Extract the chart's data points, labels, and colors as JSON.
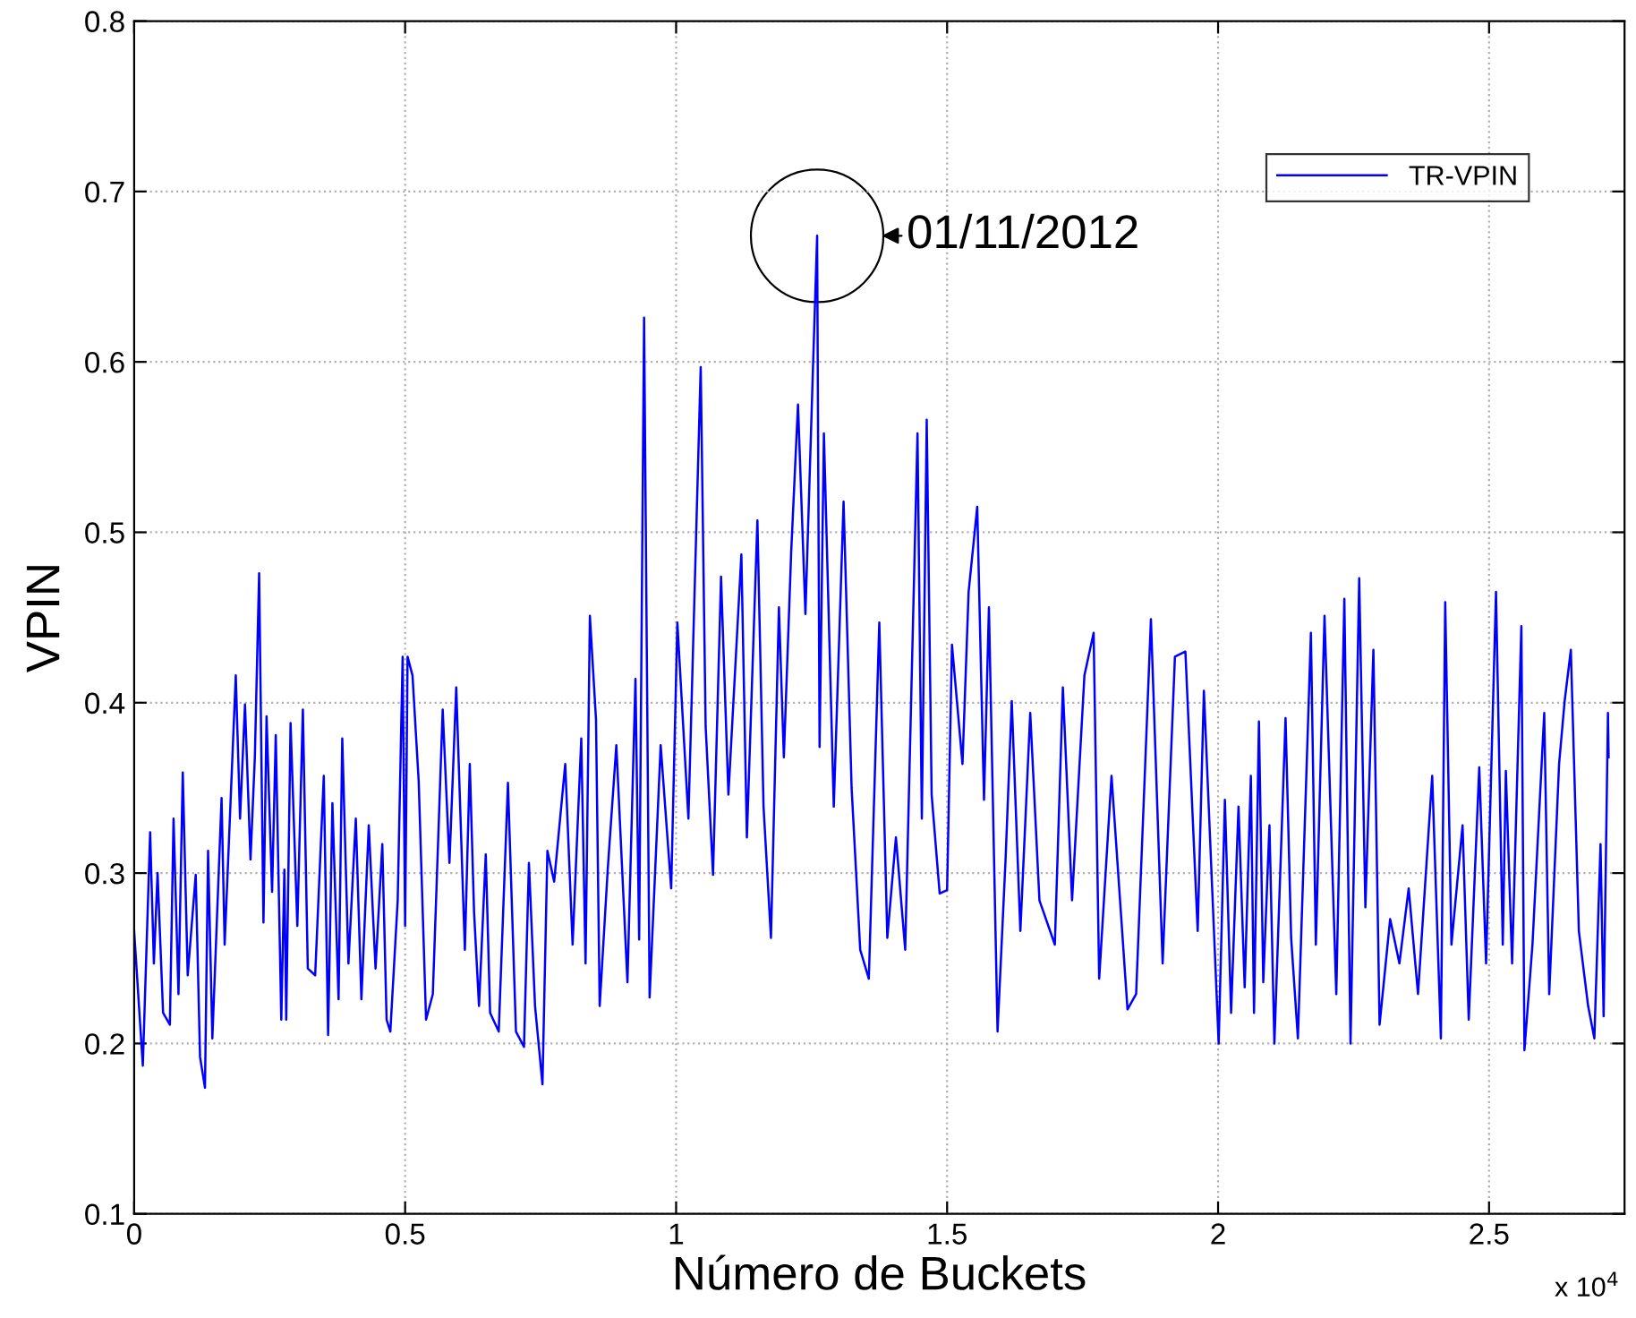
{
  "chart_data": {
    "type": "line",
    "xlabel": "Número de Buckets",
    "ylabel": "VPIN",
    "xlim": [
      0,
      2.75
    ],
    "ylim": [
      0.1,
      0.8
    ],
    "xticks": [
      0,
      0.5,
      1,
      1.5,
      2,
      2.5
    ],
    "yticks": [
      0.1,
      0.2,
      0.3,
      0.4,
      0.5,
      0.6,
      0.7,
      0.8
    ],
    "grid": true,
    "legend": "top right",
    "annotations": [
      "x 10$^{4}$",
      {
        "text": "01/11/2012",
        "x": 1.2602,
        "y": 0.674
      }
    ],
    "series": [
      {
        "name": "TR-VPIN",
        "color": "#0000ff",
        "x": [
          0,
          0.016,
          0.0295,
          0.0364,
          0.0432,
          0.0534,
          0.0659,
          0.0727,
          0.0818,
          0.0897,
          0.0988,
          0.1136,
          0.1216,
          0.1307,
          0.1364,
          0.1443,
          0.1613,
          0.167,
          0.1875,
          0.1954,
          0.2045,
          0.2147,
          0.2227,
          0.2306,
          0.2386,
          0.2443,
          0.2545,
          0.2613,
          0.2715,
          0.2772,
          0.2806,
          0.2886,
          0.3011,
          0.3113,
          0.3204,
          0.334,
          0.3499,
          0.3579,
          0.3658,
          0.3772,
          0.384,
          0.3954,
          0.409,
          0.4193,
          0.4329,
          0.4454,
          0.4579,
          0.4658,
          0.4727,
          0.4863,
          0.4954,
          0.5,
          0.5045,
          0.5136,
          0.525,
          0.5386,
          0.5511,
          0.5693,
          0.5818,
          0.5943,
          0.6102,
          0.6193,
          0.6272,
          0.6363,
          0.6488,
          0.6568,
          0.6727,
          0.6897,
          0.7045,
          0.7193,
          0.7284,
          0.7397,
          0.7534,
          0.7625,
          0.775,
          0.7954,
          0.809,
          0.825,
          0.8329,
          0.8409,
          0.8522,
          0.859,
          0.8738,
          0.8897,
          0.9102,
          0.925,
          0.9318,
          0.9409,
          0.9511,
          0.9715,
          0.9909,
          1.0023,
          1.0227,
          1.0454,
          1.0545,
          1.0681,
          1.0829,
          1.0965,
          1.1204,
          1.1306,
          1.15,
          1.1613,
          1.175,
          1.1897,
          1.1988,
          1.2124,
          1.2249,
          1.2386,
          1.2522,
          1.2602,
          1.2647,
          1.2727,
          1.2909,
          1.309,
          1.3238,
          1.3397,
          1.3556,
          1.3749,
          1.3897,
          1.4056,
          1.4227,
          1.4454,
          1.4534,
          1.4624,
          1.4715,
          1.4863,
          1.5,
          1.509,
          1.5284,
          1.5397,
          1.5556,
          1.5681,
          1.5772,
          1.5931,
          1.6079,
          1.6193,
          1.6352,
          1.6534,
          1.6704,
          1.6988,
          1.7136,
          1.7306,
          1.7534,
          1.7704,
          1.7806,
          1.8034,
          1.8329,
          1.8488,
          1.8761,
          1.8977,
          1.9204,
          1.9397,
          1.9624,
          1.9738,
          2.0011,
          2.0126,
          2.024,
          2.0377,
          2.0491,
          2.0605,
          2.0663,
          2.0754,
          2.0834,
          2.0948,
          2.1039,
          2.1245,
          2.1348,
          2.1473,
          2.1713,
          2.1804,
          2.1964,
          2.2181,
          2.233,
          2.2444,
          2.2604,
          2.2718,
          2.2866,
          2.298,
          2.3175,
          2.3346,
          2.3517,
          2.3689,
          2.3951,
          2.4111,
          2.4191,
          2.4306,
          2.4511,
          2.4625,
          2.4819,
          2.4945,
          2.5128,
          2.5253,
          2.531,
          2.5425,
          2.5596,
          2.5653,
          2.5801,
          2.6018,
          2.611,
          2.6292,
          2.6395,
          2.6509,
          2.6657,
          2.6828,
          2.6943,
          2.7057,
          2.7114,
          2.7194,
          2.7206
        ],
        "values": [
          0.266,
          0.187,
          0.324,
          0.247,
          0.3,
          0.218,
          0.211,
          0.332,
          0.229,
          0.359,
          0.24,
          0.299,
          0.192,
          0.174,
          0.313,
          0.203,
          0.344,
          0.258,
          0.416,
          0.332,
          0.399,
          0.308,
          0.368,
          0.476,
          0.271,
          0.392,
          0.289,
          0.381,
          0.214,
          0.302,
          0.214,
          0.388,
          0.269,
          0.396,
          0.244,
          0.24,
          0.357,
          0.205,
          0.341,
          0.226,
          0.379,
          0.247,
          0.332,
          0.226,
          0.328,
          0.244,
          0.317,
          0.214,
          0.207,
          0.284,
          0.427,
          0.269,
          0.427,
          0.416,
          0.354,
          0.214,
          0.229,
          0.396,
          0.306,
          0.409,
          0.255,
          0.364,
          0.277,
          0.222,
          0.311,
          0.218,
          0.207,
          0.353,
          0.207,
          0.198,
          0.306,
          0.222,
          0.176,
          0.313,
          0.295,
          0.364,
          0.258,
          0.379,
          0.247,
          0.451,
          0.39,
          0.222,
          0.302,
          0.375,
          0.236,
          0.414,
          0.261,
          0.626,
          0.227,
          0.375,
          0.291,
          0.447,
          0.332,
          0.597,
          0.386,
          0.299,
          0.474,
          0.346,
          0.487,
          0.321,
          0.507,
          0.339,
          0.262,
          0.456,
          0.368,
          0.489,
          0.575,
          0.452,
          0.593,
          0.674,
          0.374,
          0.558,
          0.339,
          0.518,
          0.35,
          0.255,
          0.238,
          0.447,
          0.262,
          0.321,
          0.255,
          0.558,
          0.332,
          0.566,
          0.346,
          0.288,
          0.29,
          0.434,
          0.364,
          0.465,
          0.515,
          0.343,
          0.456,
          0.207,
          0.308,
          0.401,
          0.266,
          0.394,
          0.284,
          0.258,
          0.409,
          0.284,
          0.416,
          0.441,
          0.238,
          0.357,
          0.22,
          0.229,
          0.449,
          0.247,
          0.427,
          0.43,
          0.266,
          0.407,
          0.2,
          0.343,
          0.218,
          0.339,
          0.233,
          0.357,
          0.218,
          0.389,
          0.236,
          0.328,
          0.2,
          0.391,
          0.262,
          0.203,
          0.441,
          0.258,
          0.451,
          0.229,
          0.461,
          0.2,
          0.473,
          0.28,
          0.431,
          0.211,
          0.273,
          0.247,
          0.291,
          0.229,
          0.357,
          0.203,
          0.459,
          0.258,
          0.328,
          0.214,
          0.362,
          0.247,
          0.465,
          0.258,
          0.36,
          0.247,
          0.445,
          0.196,
          0.258,
          0.394,
          0.229,
          0.364,
          0.401,
          0.431,
          0.266,
          0.222,
          0.203,
          0.317,
          0.216,
          0.394,
          0.368
        ]
      }
    ]
  }
}
